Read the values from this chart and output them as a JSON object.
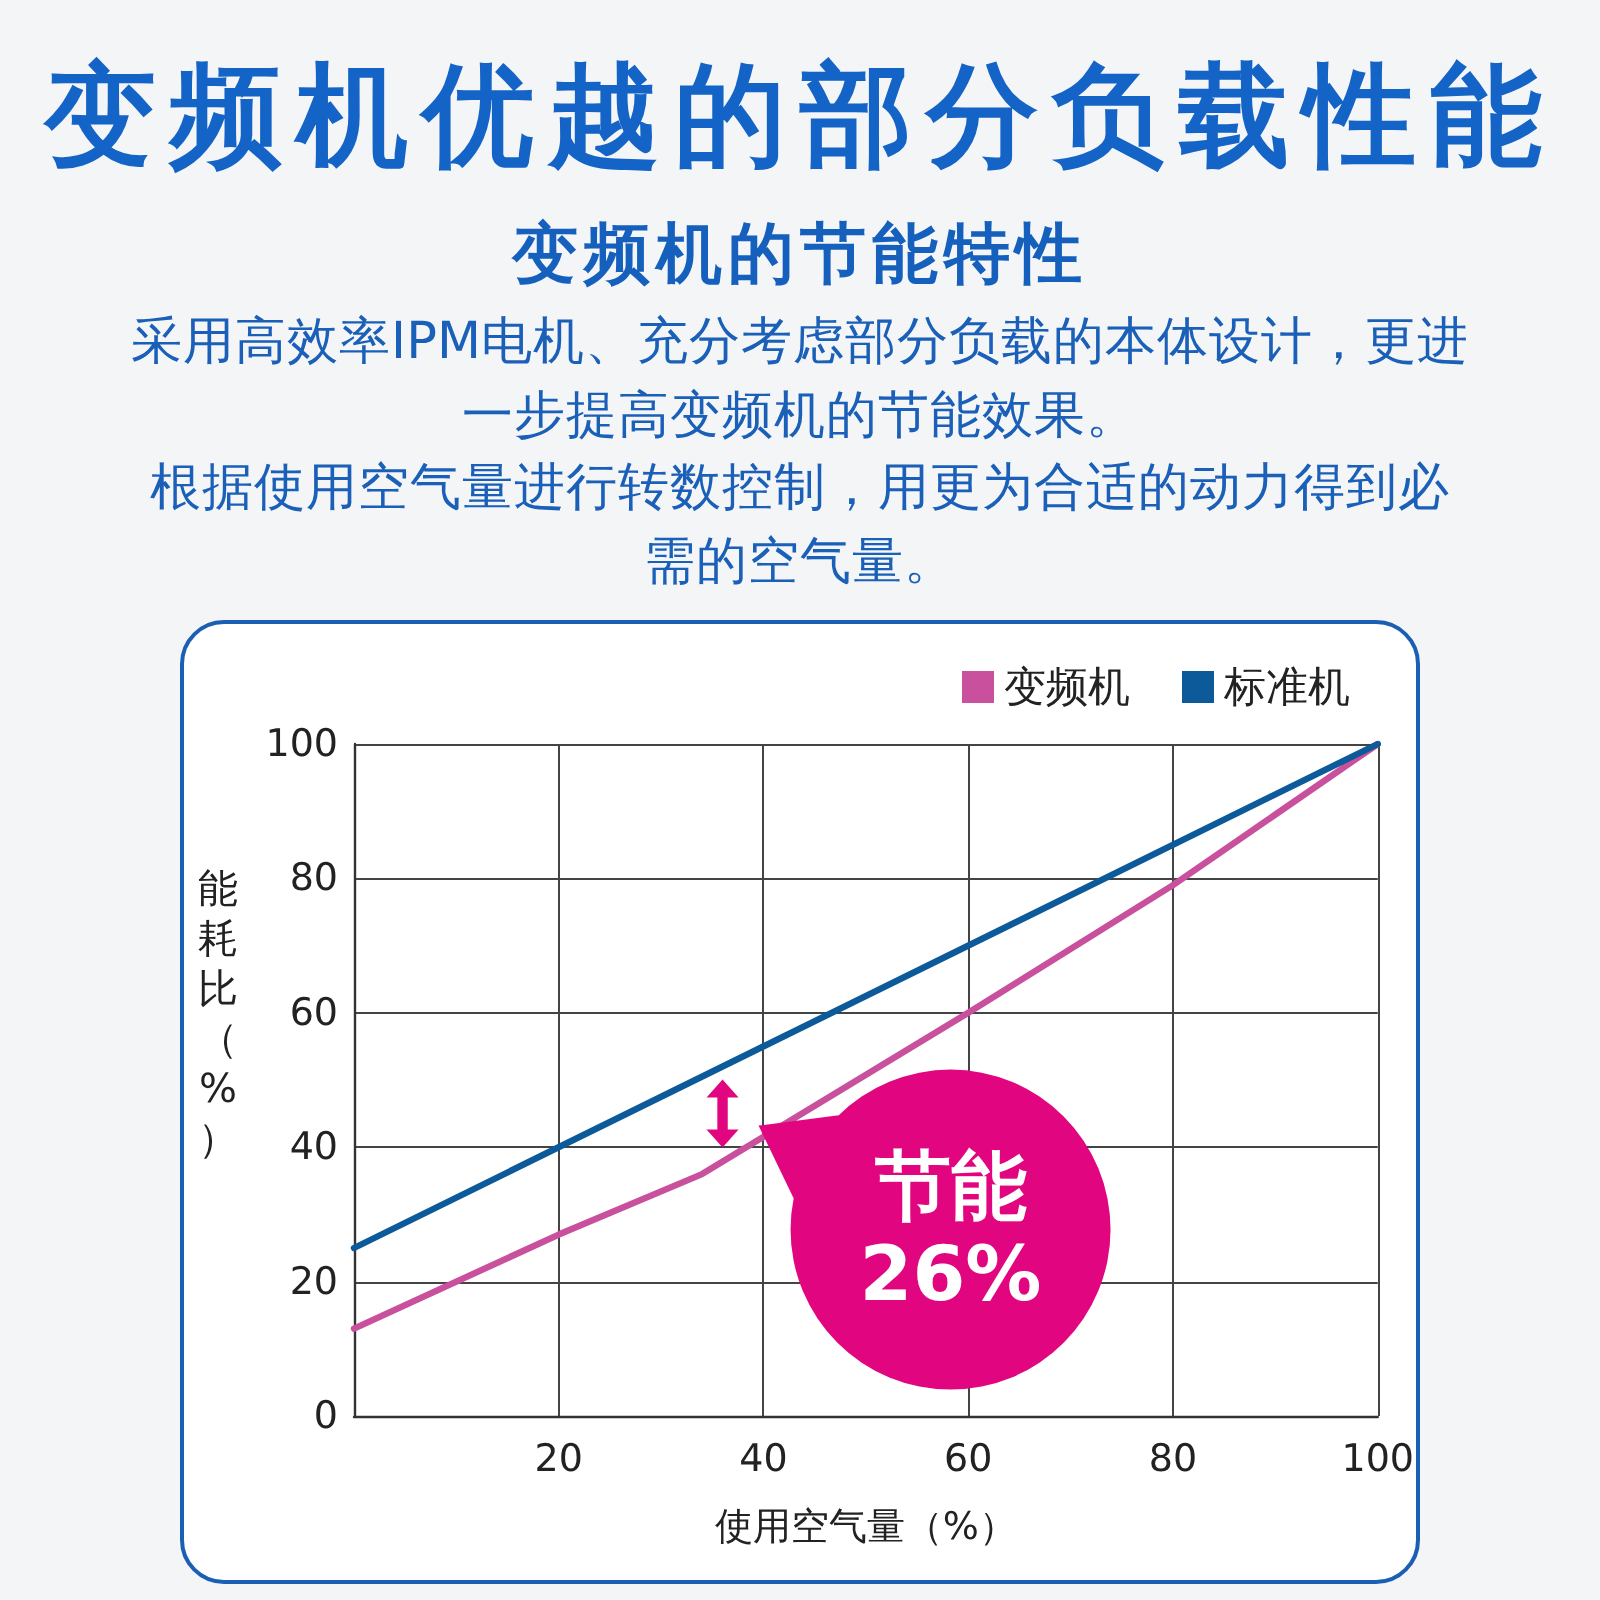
{
  "chart_data": {
    "type": "line",
    "title": "变频机优越的部分负载性能",
    "subtitle": "变频机的节能特性",
    "xlabel": "使用空气量（%）",
    "ylabel": "能耗比（%）",
    "annotations": [
      "采用高效率IPM电机、充分考虑部分负载的本体设计，更进一步提高变频机的节能效果。",
      "根据使用空气量进行转数控制，用更为合适的动力得到必需的空气量。",
      {
        "text": "节能\n26%",
        "x": 36,
        "y": 45
      }
    ],
    "series": [
      {
        "name": "变频机",
        "color": "#c8509c",
        "x": [
          0,
          20,
          34,
          60,
          80,
          100
        ],
        "values": [
          13,
          27,
          36,
          60,
          79,
          100
        ]
      },
      {
        "name": "标准机",
        "color": "#0c5a9a",
        "x": [
          0,
          100
        ],
        "values": [
          25,
          100
        ]
      }
    ],
    "xlim": [
      0,
      100
    ],
    "xticks": [
      {
        "value": 0,
        "label": null
      },
      20,
      40,
      60,
      80,
      100
    ],
    "ylim": [
      0,
      100
    ],
    "yticks": [
      0,
      20,
      40,
      60,
      80,
      100
    ],
    "grid": true,
    "legend": "top right",
    "marker": "none",
    "line_style": "solid"
  }
}
